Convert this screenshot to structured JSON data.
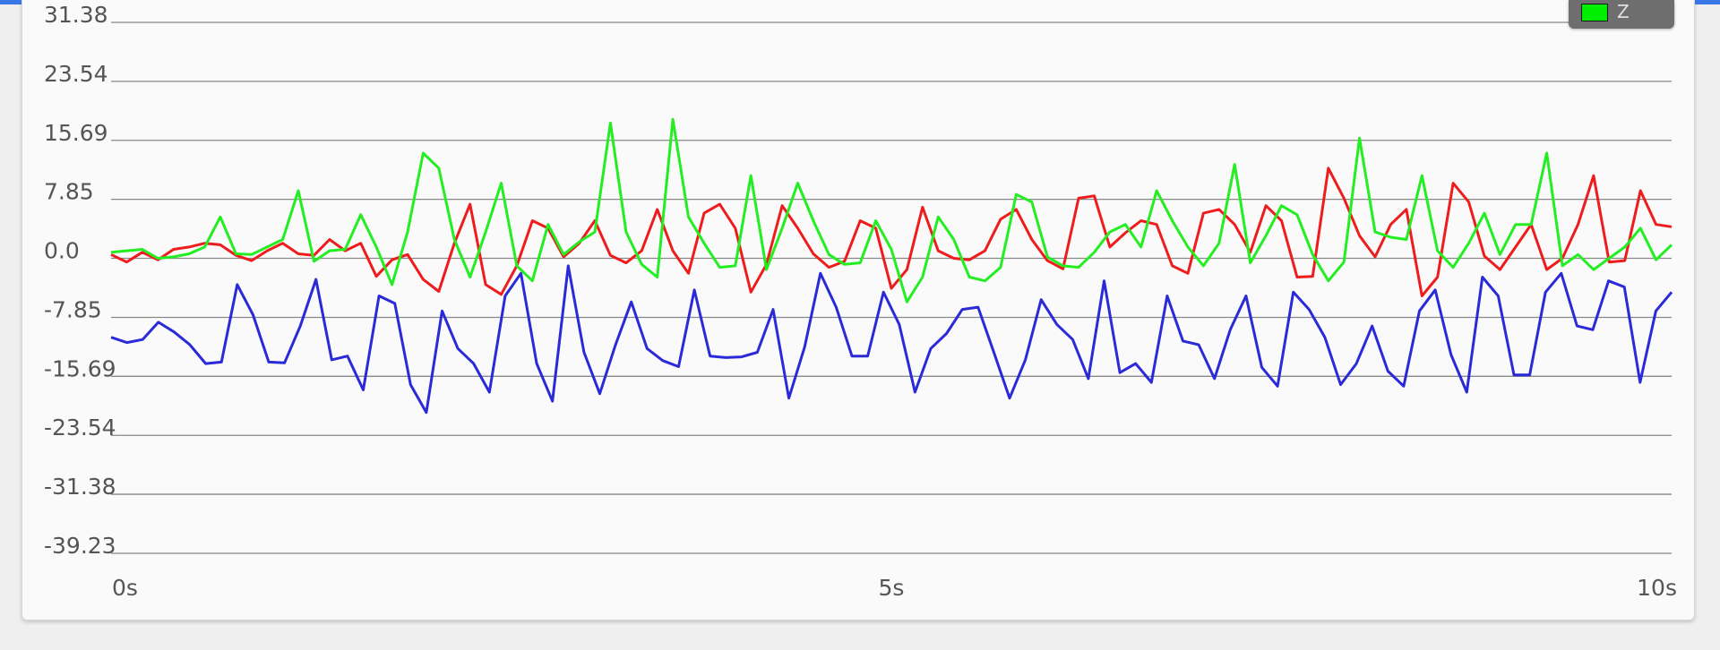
{
  "chart_data": {
    "type": "line",
    "y_ticks": [
      "31.38",
      "23.54",
      "15.69",
      "7.85",
      "0.0",
      "-7.85",
      "-15.69",
      "-23.54",
      "-31.38",
      "-39.23"
    ],
    "y_tick_values": [
      31.38,
      23.54,
      15.69,
      7.85,
      0.0,
      -7.85,
      -15.69,
      -23.54,
      -31.38,
      -39.23
    ],
    "ylim": [
      -39.23,
      31.38
    ],
    "x_ticks": [
      {
        "label": "0s",
        "value": 0
      },
      {
        "label": "5s",
        "value": 5
      },
      {
        "label": "10s",
        "value": 10
      }
    ],
    "xlim": [
      0,
      10
    ],
    "grid": true,
    "legend": {
      "position": "top-right",
      "entries": [
        {
          "name": "Z",
          "color": "#00ee00"
        }
      ]
    },
    "series": [
      {
        "color": "#ee1c1c",
        "values": [
          0.5,
          -0.5,
          0.8,
          -0.2,
          1.2,
          1.5,
          2.0,
          1.8,
          0.4,
          -0.3,
          1.0,
          2.0,
          0.6,
          0.4,
          2.5,
          1.0,
          2.0,
          -2.4,
          -0.2,
          0.5,
          -2.8,
          -4.4,
          2.0,
          7.2,
          -3.5,
          -4.8,
          -1.0,
          5.0,
          4.0,
          0.2,
          2.0,
          5.0,
          0.4,
          -0.6,
          1.0,
          6.5,
          1.0,
          -2.0,
          6.0,
          7.2,
          4.0,
          -4.5,
          -0.8,
          7.0,
          4.0,
          0.6,
          -1.2,
          -0.4,
          5.0,
          4.0,
          -4.0,
          -1.5,
          6.8,
          1.0,
          0.0,
          -0.2,
          1.0,
          5.2,
          6.5,
          2.5,
          -0.3,
          -1.4,
          8.0,
          8.3,
          1.5,
          3.4,
          5.0,
          4.5,
          -1.0,
          -2.0,
          6.0,
          6.5,
          4.5,
          0.8,
          7.0,
          5.0,
          -2.5,
          -2.4,
          12.0,
          8.0,
          3.0,
          0.2,
          4.5,
          6.5,
          -5.0,
          -2.5,
          10.0,
          7.5,
          0.3,
          -1.5,
          1.5,
          4.5,
          -1.5,
          0.0,
          4.5,
          11.0,
          -0.5,
          -0.3,
          9.0,
          4.5,
          4.2
        ]
      },
      {
        "color": "#2a2ad8",
        "values": [
          -10.5,
          -11.2,
          -10.8,
          -8.5,
          -9.8,
          -11.5,
          -14.0,
          -13.8,
          -3.5,
          -7.5,
          -13.8,
          -13.9,
          -9.0,
          -2.8,
          -13.5,
          -13.0,
          -17.5,
          -5.0,
          -6.0,
          -16.8,
          -20.5,
          -7.0,
          -12.0,
          -14.0,
          -17.8,
          -5.0,
          -2.0,
          -14.0,
          -19.0,
          -1.0,
          -12.5,
          -18.0,
          -11.5,
          -5.8,
          -12.0,
          -13.6,
          -14.4,
          -4.2,
          -13.0,
          -13.2,
          -13.1,
          -12.5,
          -6.8,
          -18.6,
          -11.8,
          -2.0,
          -6.5,
          -13.0,
          -13.0,
          -4.5,
          -8.8,
          -17.8,
          -12.0,
          -10.0,
          -6.8,
          -6.5,
          -12.5,
          -18.6,
          -13.5,
          -5.5,
          -8.8,
          -10.8,
          -16.0,
          -3.0,
          -15.2,
          -14.0,
          -16.5,
          -5.0,
          -11.0,
          -11.5,
          -16.0,
          -9.5,
          -5.0,
          -14.5,
          -17.0,
          -4.5,
          -6.8,
          -10.5,
          -16.8,
          -14.0,
          -9.0,
          -15.0,
          -17.0,
          -7.0,
          -4.2,
          -12.8,
          -17.8,
          -2.5,
          -5.0,
          -15.5,
          -15.5,
          -4.5,
          -2.0,
          -9.0,
          -9.5,
          -3.0,
          -3.8,
          -16.5,
          -7.0,
          -4.5
        ]
      },
      {
        "color": "#22ee22",
        "values": [
          0.8,
          1.0,
          1.2,
          0.0,
          0.2,
          0.6,
          1.5,
          5.5,
          0.6,
          0.5,
          1.5,
          2.5,
          9.0,
          -0.4,
          1.0,
          1.2,
          5.8,
          1.5,
          -3.5,
          3.5,
          14.0,
          12.0,
          2.5,
          -2.5,
          3.5,
          10.0,
          -1.0,
          -3.0,
          4.5,
          0.5,
          2.2,
          3.5,
          18.0,
          3.5,
          -0.8,
          -2.5,
          18.5,
          5.5,
          2.0,
          -1.2,
          -1.0,
          11.0,
          -1.5,
          4.0,
          10.0,
          5.0,
          0.5,
          -0.8,
          -0.6,
          5.0,
          1.2,
          -5.8,
          -2.5,
          5.5,
          2.5,
          -2.5,
          -3.0,
          -1.2,
          8.5,
          7.5,
          0.2,
          -1.0,
          -1.2,
          0.8,
          3.5,
          4.5,
          1.5,
          9.0,
          5.0,
          1.5,
          -1.0,
          2.0,
          12.5,
          -0.6,
          3.0,
          7.0,
          5.8,
          0.5,
          -3.0,
          -0.5,
          16.0,
          3.5,
          2.8,
          2.5,
          11.0,
          1.0,
          -1.2,
          2.0,
          6.0,
          0.5,
          4.5,
          4.5,
          14.0,
          -1.0,
          0.5,
          -1.5,
          0.0,
          1.5,
          4.0,
          -0.2,
          1.8
        ]
      }
    ]
  }
}
